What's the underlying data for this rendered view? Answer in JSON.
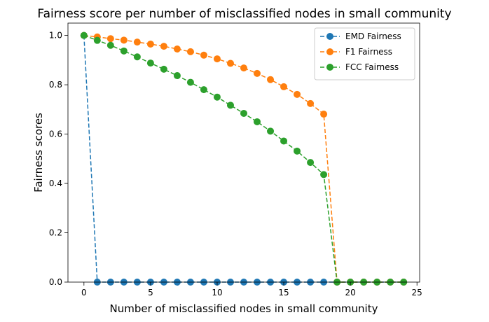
{
  "chart_data": {
    "type": "line",
    "title": "Fairness score per number of misclassified nodes in small community",
    "xlabel": "Number of misclassified nodes in small community",
    "ylabel": "Fairness scores",
    "xlim": [
      -1.2,
      25.2
    ],
    "ylim": [
      0,
      1.05
    ],
    "xticks": [
      0,
      5,
      10,
      15,
      20,
      25
    ],
    "yticks": [
      0.0,
      0.2,
      0.4,
      0.6,
      0.8,
      1.0
    ],
    "xtick_labels": [
      "0",
      "5",
      "10",
      "15",
      "20",
      "25"
    ],
    "ytick_labels": [
      "0.0",
      "0.2",
      "0.4",
      "0.6",
      "0.8",
      "1.0"
    ],
    "grid": false,
    "legend_position": "top-right",
    "x": [
      0,
      1,
      2,
      3,
      4,
      5,
      6,
      7,
      8,
      9,
      10,
      11,
      12,
      13,
      14,
      15,
      16,
      17,
      18,
      19,
      20,
      21,
      22,
      23,
      24
    ],
    "series": [
      {
        "name": "EMD Fairness",
        "color": "#1f77b4",
        "line_style": "dashed",
        "marker": "circle",
        "values": [
          1.0,
          0,
          0,
          0,
          0,
          0,
          0,
          0,
          0,
          0,
          0,
          0,
          0,
          0,
          0,
          0,
          0,
          0,
          0,
          0,
          0,
          0,
          0,
          0,
          0
        ]
      },
      {
        "name": "F1 Fairness",
        "color": "#ff7f0e",
        "line_style": "dashed",
        "marker": "circle",
        "values": [
          1.0,
          0.994,
          0.987,
          0.981,
          0.973,
          0.965,
          0.956,
          0.945,
          0.934,
          0.92,
          0.905,
          0.887,
          0.868,
          0.846,
          0.821,
          0.792,
          0.761,
          0.724,
          0.681,
          0,
          0,
          0,
          0,
          0,
          0
        ]
      },
      {
        "name": "FCC Fairness",
        "color": "#2ca02c",
        "line_style": "dashed",
        "marker": "circle",
        "values": [
          1.0,
          0.98,
          0.96,
          0.937,
          0.913,
          0.888,
          0.863,
          0.837,
          0.81,
          0.78,
          0.75,
          0.717,
          0.684,
          0.65,
          0.612,
          0.572,
          0.531,
          0.485,
          0.436,
          0,
          0,
          0,
          0,
          0,
          0
        ]
      }
    ]
  }
}
